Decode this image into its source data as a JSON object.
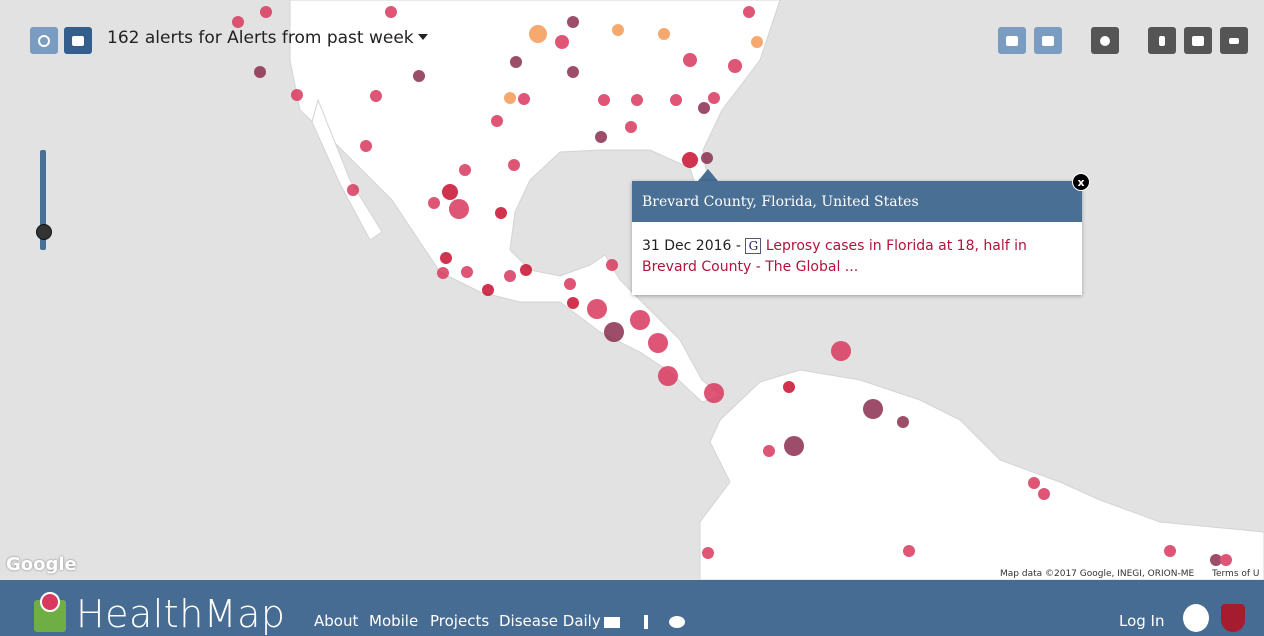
{
  "header": {
    "alert_summary": "162 alerts for Alerts from past week"
  },
  "popup": {
    "title": "Brevard County, Florida, United States",
    "date": "31 Dec 2016 -",
    "source_icon": "G",
    "link_text": "Leprosy cases in Florida at 18, half in Brevard County - The Global ...",
    "close": "x"
  },
  "map": {
    "logo": "Google",
    "attribution": "Map data ©2017 Google, INEGI, ORION-ME",
    "terms": "Terms of U"
  },
  "footer": {
    "logo": "HealthMap",
    "nav": [
      "About",
      "Mobile",
      "Projects",
      "Disease Daily"
    ],
    "login": "Log In"
  }
}
